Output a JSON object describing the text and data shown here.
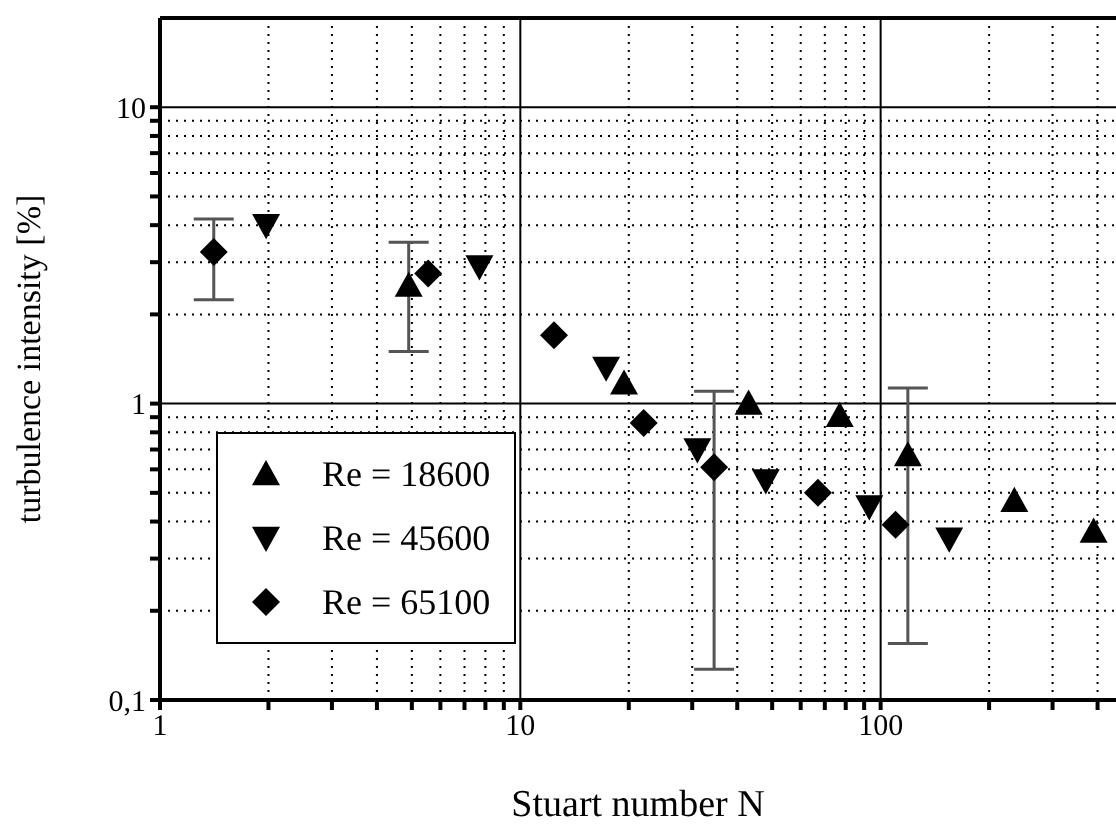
{
  "chart_data": {
    "type": "scatter",
    "xlabel": "Stuart number N",
    "ylabel": "turbulence intensity [%]",
    "log": "xy",
    "grid": true,
    "legend": "bottom left",
    "xlim": [
      1,
      450
    ],
    "ylim": [
      0.1,
      20
    ],
    "xticks": [
      1,
      {
        "value": 2,
        "label": null
      },
      {
        "value": 3,
        "label": null
      },
      {
        "value": 4,
        "label": null
      },
      {
        "value": 5,
        "label": null
      },
      {
        "value": 6,
        "label": null
      },
      {
        "value": 7,
        "label": null
      },
      {
        "value": 8,
        "label": null
      },
      {
        "value": 9,
        "label": null
      },
      10,
      {
        "value": 20,
        "label": null
      },
      {
        "value": 30,
        "label": null
      },
      {
        "value": 40,
        "label": null
      },
      {
        "value": 50,
        "label": null
      },
      {
        "value": 60,
        "label": null
      },
      {
        "value": 70,
        "label": null
      },
      {
        "value": 80,
        "label": null
      },
      {
        "value": 90,
        "label": null
      },
      100,
      {
        "value": 200,
        "label": null
      },
      {
        "value": 300,
        "label": null
      },
      {
        "value": 400,
        "label": null
      }
    ],
    "yticks": [
      {
        "value": 0.1,
        "label": "0,1"
      },
      {
        "value": 0.2,
        "label": null
      },
      {
        "value": 0.3,
        "label": null
      },
      {
        "value": 0.4,
        "label": null
      },
      {
        "value": 0.5,
        "label": null
      },
      {
        "value": 0.6,
        "label": null
      },
      {
        "value": 0.7,
        "label": null
      },
      {
        "value": 0.8,
        "label": null
      },
      {
        "value": 0.9,
        "label": null
      },
      1,
      {
        "value": 2,
        "label": null
      },
      {
        "value": 3,
        "label": null
      },
      {
        "value": 4,
        "label": null
      },
      {
        "value": 5,
        "label": null
      },
      {
        "value": 6,
        "label": null
      },
      {
        "value": 7,
        "label": null
      },
      {
        "value": 8,
        "label": null
      },
      {
        "value": 9,
        "label": null
      },
      10
    ],
    "series": [
      {
        "name": "Re = 18600",
        "color": "#000000",
        "marker": "triangle",
        "x": [
          4.9,
          19.4,
          43,
          77,
          119,
          235,
          390
        ],
        "values": [
          2.5,
          1.17,
          1.0,
          0.91,
          0.67,
          0.47,
          0.37
        ],
        "errors": [
          [
            1.5,
            3.5
          ],
          null,
          null,
          null,
          [
            0.155,
            1.13
          ],
          null,
          null
        ]
      },
      {
        "name": "Re = 45600",
        "color": "#000000",
        "marker": "triangle-down",
        "x": [
          1.97,
          7.7,
          17.3,
          31,
          48,
          93,
          155
        ],
        "values": [
          4.0,
          2.9,
          1.32,
          0.7,
          0.55,
          0.45,
          0.35
        ]
      },
      {
        "name": "Re = 65100",
        "color": "#000000",
        "marker": "diamond",
        "x": [
          1.41,
          5.55,
          12.4,
          22,
          34.5,
          67,
          110
        ],
        "values": [
          3.25,
          2.75,
          1.7,
          0.86,
          0.61,
          0.5,
          0.39
        ],
        "errors": [
          [
            2.24,
            4.2
          ],
          null,
          null,
          null,
          [
            0.127,
            1.1
          ],
          null,
          null
        ]
      }
    ]
  }
}
